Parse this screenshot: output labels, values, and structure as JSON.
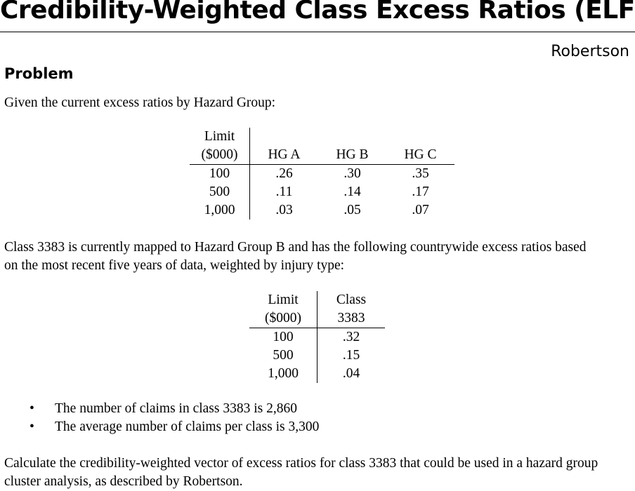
{
  "title": "Credibility-Weighted Class Excess Ratios (ELFs)",
  "author": "Robertson",
  "section_heading": "Problem",
  "intro": "Given the current excess ratios by Hazard Group:",
  "hazard_group_table": {
    "limit_header_line1": "Limit",
    "limit_header_line2": "($000)",
    "columns": [
      "HG A",
      "HG B",
      "HG C"
    ],
    "rows": [
      {
        "limit": "100",
        "values": [
          ".26",
          ".30",
          ".35"
        ]
      },
      {
        "limit": "500",
        "values": [
          ".11",
          ".14",
          ".17"
        ]
      },
      {
        "limit": "1,000",
        "values": [
          ".03",
          ".05",
          ".07"
        ]
      }
    ]
  },
  "class_paragraph": {
    "line1": "Class 3383 is currently mapped to Hazard Group B and has the following countrywide excess ratios based",
    "line2": "on the most recent five years of data, weighted by injury type:"
  },
  "class_table": {
    "limit_header_line1": "Limit",
    "limit_header_line2": "($000)",
    "class_header_line1": "Class",
    "class_header_line2": "3383",
    "rows": [
      {
        "limit": "100",
        "value": ".32"
      },
      {
        "limit": "500",
        "value": ".15"
      },
      {
        "limit": "1,000",
        "value": ".04"
      }
    ]
  },
  "bullets": [
    "The number of claims in class 3383 is 2,860",
    "The average number of claims per class is 3,300"
  ],
  "task_paragraph": {
    "line1": "Calculate the credibility-weighted vector of excess ratios for class 3383 that could be used in a hazard group",
    "line2": "cluster analysis, as described by Robertson."
  }
}
